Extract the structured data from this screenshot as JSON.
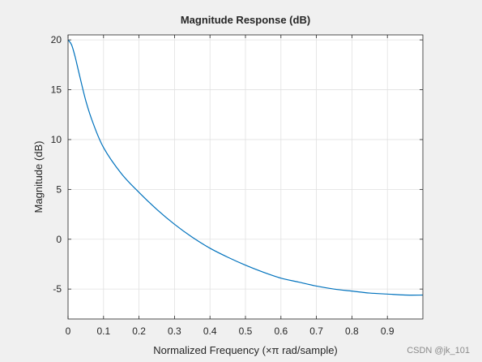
{
  "watermark": "CSDN @jk_101",
  "chart_data": {
    "type": "line",
    "title": "Magnitude Response (dB)",
    "xlabel": "Normalized Frequency (×π rad/sample)",
    "ylabel": "Magnitude (dB)",
    "xlim": [
      0,
      1
    ],
    "ylim": [
      -8,
      20.5
    ],
    "grid": true,
    "x_ticks": [
      0,
      0.1,
      0.2,
      0.3,
      0.4,
      0.5,
      0.6,
      0.7,
      0.8,
      0.9
    ],
    "x_tick_labels": [
      "0",
      "0.1",
      "0.2",
      "0.3",
      "0.4",
      "0.5",
      "0.6",
      "0.7",
      "0.8",
      "0.9"
    ],
    "y_ticks": [
      -5,
      0,
      5,
      10,
      15,
      20
    ],
    "y_tick_labels": [
      "-5",
      "0",
      "5",
      "10",
      "15",
      "20"
    ],
    "line_color": "#0072bd",
    "series": [
      {
        "x": [
          0,
          0.01,
          0.02,
          0.03,
          0.05,
          0.07,
          0.1,
          0.15,
          0.2,
          0.25,
          0.3,
          0.35,
          0.4,
          0.45,
          0.5,
          0.55,
          0.6,
          0.65,
          0.7,
          0.75,
          0.8,
          0.85,
          0.9,
          0.95,
          1.0
        ],
        "y": [
          20,
          19.5,
          18.3,
          16.8,
          13.9,
          11.7,
          9.2,
          6.6,
          4.7,
          3.0,
          1.5,
          0.2,
          -0.9,
          -1.8,
          -2.6,
          -3.3,
          -3.9,
          -4.3,
          -4.7,
          -5.0,
          -5.2,
          -5.4,
          -5.5,
          -5.6,
          -5.6
        ]
      }
    ]
  }
}
